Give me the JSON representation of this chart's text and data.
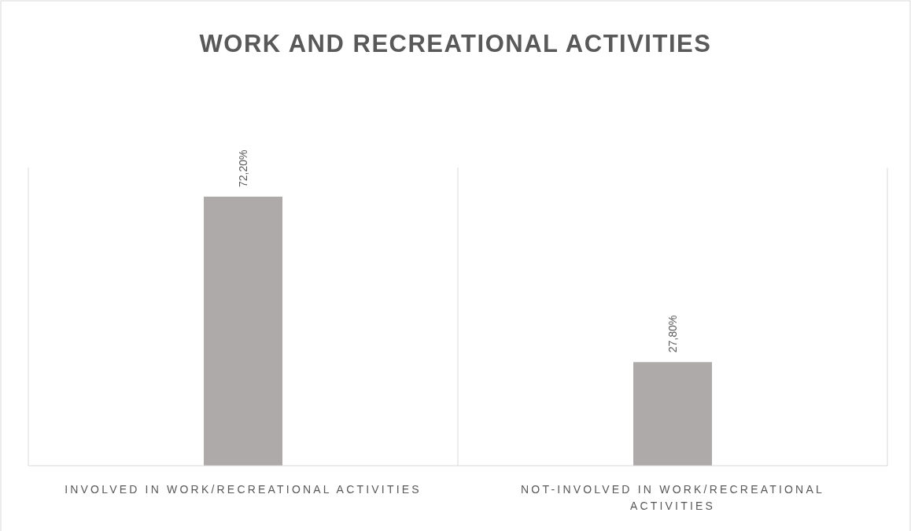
{
  "chart_data": {
    "type": "bar",
    "title": "WORK AND RECREATIONAL ACTIVITIES",
    "categories": [
      "INVOLVED IN WORK/RECREATIONAL ACTIVITIES",
      "NOT-INVOLVED IN WORK/RECREATIONAL ACTIVITIES"
    ],
    "values": [
      72.2,
      27.8
    ],
    "value_labels": [
      "72,20%",
      "27,80%"
    ],
    "color": "#aeaaaa",
    "grid": "x"
  }
}
